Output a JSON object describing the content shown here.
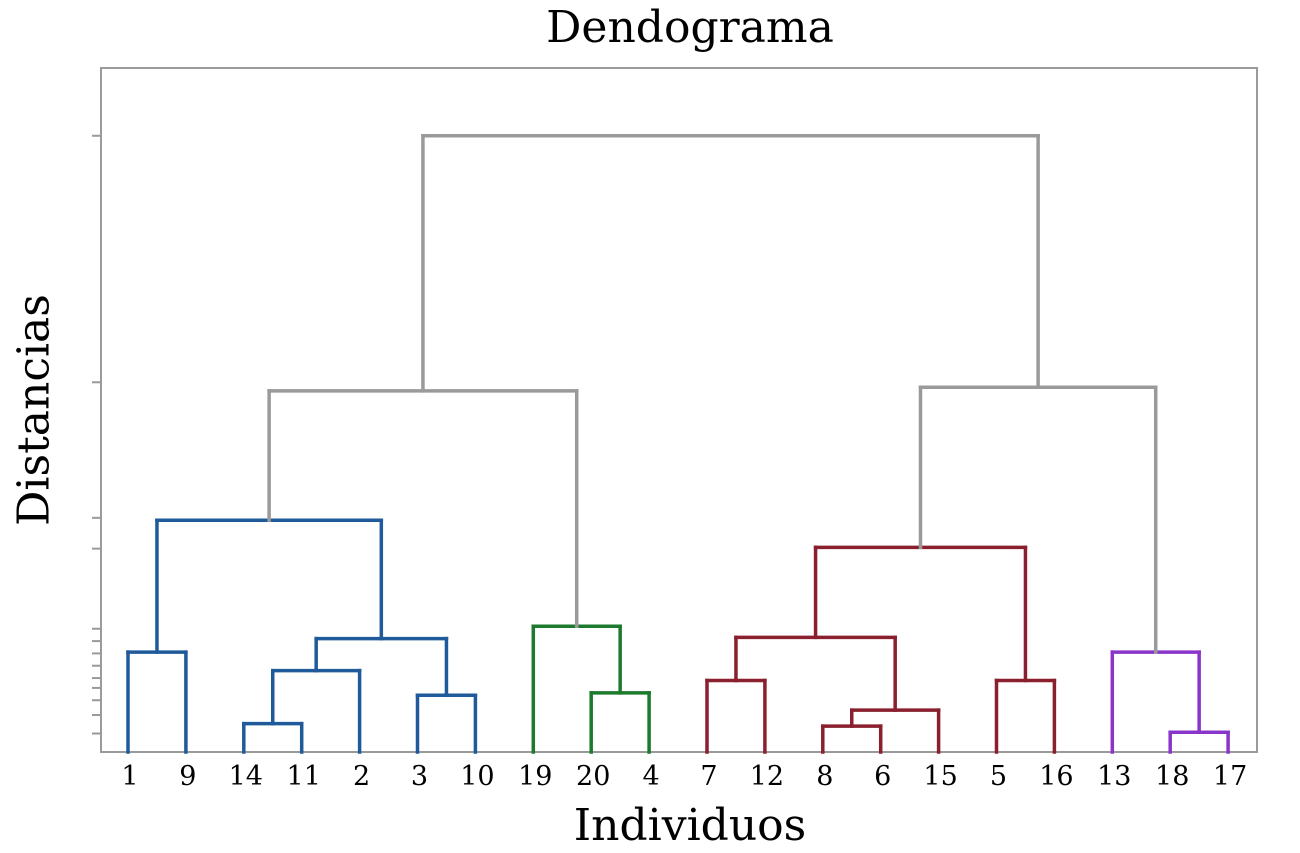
{
  "title": "Dendograma",
  "xlabel": "Individuos",
  "ylabel": "Distancias",
  "chart_data": {
    "type": "dendrogram",
    "title": "Dendograma",
    "xlabel": "Individuos",
    "ylabel": "Distancias",
    "leaf_order": [
      "1",
      "9",
      "14",
      "11",
      "2",
      "3",
      "10",
      "19",
      "20",
      "4",
      "7",
      "12",
      "8",
      "6",
      "15",
      "5",
      "16",
      "13",
      "18",
      "17"
    ],
    "clusters": [
      {
        "name": "blue",
        "color": "#1f5a9a",
        "leaves": [
          "1",
          "9",
          "14",
          "11",
          "2",
          "3",
          "10"
        ]
      },
      {
        "name": "green",
        "color": "#1c7a2c",
        "leaves": [
          "19",
          "20",
          "4"
        ]
      },
      {
        "name": "red",
        "color": "#8a1f2d",
        "leaves": [
          "7",
          "12",
          "8",
          "6",
          "15",
          "5",
          "16"
        ]
      },
      {
        "name": "purple",
        "color": "#8a35c9",
        "leaves": [
          "13",
          "18",
          "17"
        ]
      }
    ],
    "above_cut_color": "#9a9a9a",
    "merges": [
      {
        "id": "m1",
        "left": "1",
        "right": "9",
        "height": 8.1,
        "color": "#1f5a9a"
      },
      {
        "id": "m2",
        "left": "14",
        "right": "11",
        "height": 2.3,
        "color": "#1f5a9a"
      },
      {
        "id": "m3",
        "left": "m2",
        "right": "2",
        "height": 6.6,
        "color": "#1f5a9a"
      },
      {
        "id": "m4",
        "left": "3",
        "right": "10",
        "height": 4.6,
        "color": "#1f5a9a"
      },
      {
        "id": "m5",
        "left": "m3",
        "right": "m4",
        "height": 9.2,
        "color": "#1f5a9a"
      },
      {
        "id": "m6",
        "left": "m1",
        "right": "m5",
        "height": 18.8,
        "color": "#1f5a9a"
      },
      {
        "id": "m7",
        "left": "20",
        "right": "4",
        "height": 4.8,
        "color": "#1c7a2c"
      },
      {
        "id": "m8",
        "left": "19",
        "right": "m7",
        "height": 10.2,
        "color": "#1c7a2c"
      },
      {
        "id": "m9",
        "left": "m6",
        "right": "m8",
        "height": 29.3,
        "color": "#9a9a9a"
      },
      {
        "id": "m10",
        "left": "7",
        "right": "12",
        "height": 5.8,
        "color": "#8a1f2d"
      },
      {
        "id": "m11",
        "left": "8",
        "right": "6",
        "height": 2.1,
        "color": "#8a1f2d"
      },
      {
        "id": "m12",
        "left": "m11",
        "right": "15",
        "height": 3.4,
        "color": "#8a1f2d"
      },
      {
        "id": "m13",
        "left": "m10",
        "right": "m12",
        "height": 9.3,
        "color": "#8a1f2d"
      },
      {
        "id": "m14",
        "left": "5",
        "right": "16",
        "height": 5.8,
        "color": "#8a1f2d"
      },
      {
        "id": "m15",
        "left": "m13",
        "right": "m14",
        "height": 16.6,
        "color": "#8a1f2d"
      },
      {
        "id": "m16",
        "left": "18",
        "right": "17",
        "height": 1.6,
        "color": "#8a35c9"
      },
      {
        "id": "m17",
        "left": "13",
        "right": "m16",
        "height": 8.1,
        "color": "#8a35c9"
      },
      {
        "id": "m18",
        "left": "m15",
        "right": "m17",
        "height": 29.6,
        "color": "#9a9a9a"
      },
      {
        "id": "m19",
        "left": "m9",
        "right": "m18",
        "height": 50.0,
        "color": "#9a9a9a"
      }
    ],
    "ylim": [
      0,
      55.5
    ],
    "y_ticks": [
      1.5,
      3.0,
      4.2,
      5.2,
      6.0,
      7.0,
      8.0,
      9.0,
      10.0,
      16.5,
      19.0,
      30.0,
      50.0
    ],
    "y_tick_labels_shown": false,
    "grid": false,
    "legend": "none"
  }
}
